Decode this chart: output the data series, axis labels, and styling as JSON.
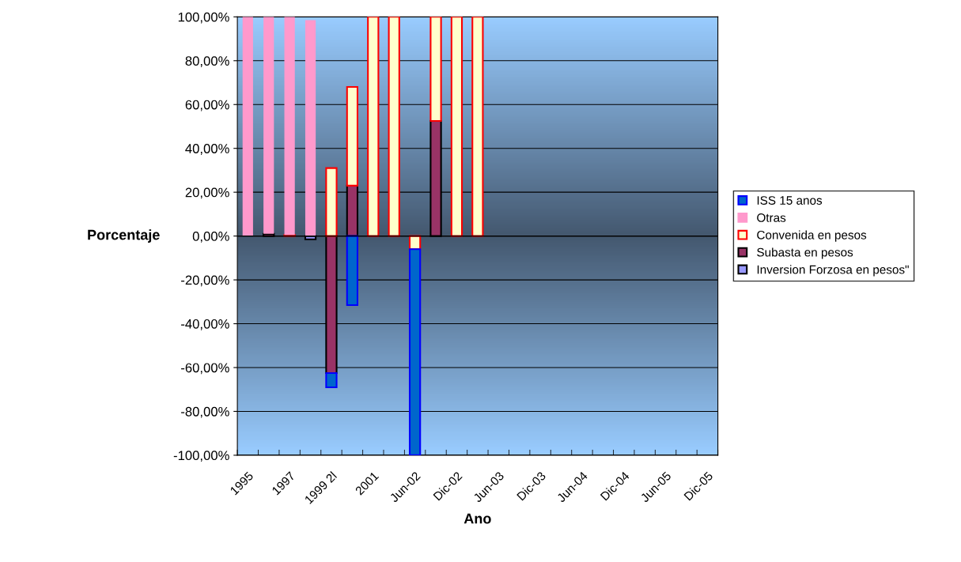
{
  "chart_data": {
    "type": "bar",
    "stacked": true,
    "xlabel": "Ano",
    "ylabel": "Porcentaje",
    "categories": [
      "1995",
      null,
      "1997",
      null,
      "1999 2l",
      null,
      "2001",
      null,
      "Jun-02",
      null,
      "Dic-02",
      null,
      "Jun-03",
      null,
      "Dic-03",
      null,
      "Jun-04",
      null,
      "Dic-04",
      null,
      "Jun-05",
      null,
      "Dic-05"
    ],
    "series": [
      {
        "name": "Inversion Forzosa en pesos\"",
        "color": "#9999ff",
        "values": [
          null,
          null,
          null,
          -1.5,
          null,
          null,
          null,
          null,
          null,
          null,
          null,
          null,
          null,
          null,
          null,
          null,
          null,
          null,
          null,
          null,
          null,
          null,
          null
        ]
      },
      {
        "name": "Subasta en pesos",
        "color": "#993366",
        "values": [
          null,
          1,
          null,
          null,
          -62.5,
          23,
          null,
          null,
          null,
          52.5,
          null,
          null,
          null,
          null,
          null,
          null,
          null,
          null,
          null,
          null,
          null,
          null,
          null
        ]
      },
      {
        "name": "Convenida en pesos",
        "color": "#ffffcc",
        "values": [
          null,
          null,
          0.5,
          null,
          31,
          45,
          100,
          100,
          -6,
          47.5,
          100,
          100,
          null,
          null,
          null,
          null,
          null,
          null,
          null,
          null,
          null,
          null,
          null
        ]
      },
      {
        "name": "Otras",
        "color": "#ff99cc",
        "values": [
          100,
          99,
          99.5,
          98.5,
          null,
          null,
          null,
          null,
          null,
          null,
          null,
          null,
          null,
          null,
          null,
          null,
          null,
          null,
          null,
          null,
          null,
          null,
          null
        ]
      },
      {
        "name": "ISS 15 anos",
        "color": "#0066cc",
        "values": [
          null,
          null,
          null,
          null,
          -6.5,
          -31.5,
          null,
          null,
          -94,
          null,
          null,
          null,
          null,
          null,
          null,
          null,
          null,
          null,
          null,
          null,
          null,
          null,
          null
        ]
      }
    ],
    "ylim": [
      -100,
      100
    ],
    "yticks": [
      {
        "value": -100,
        "label": "-100,00%"
      },
      {
        "value": -80,
        "label": "-80,00%"
      },
      {
        "value": -60,
        "label": "-60,00%"
      },
      {
        "value": -40,
        "label": "-40,00%"
      },
      {
        "value": -20,
        "label": "-20,00%"
      },
      {
        "value": 0,
        "label": "0,00%"
      },
      {
        "value": 20,
        "label": "20,00%"
      },
      {
        "value": 40,
        "label": "40,00%"
      },
      {
        "value": 60,
        "label": "60,00%"
      },
      {
        "value": 80,
        "label": "80,00%"
      },
      {
        "value": 100,
        "label": "100,00%"
      }
    ],
    "grid": "y",
    "legend": "right"
  }
}
